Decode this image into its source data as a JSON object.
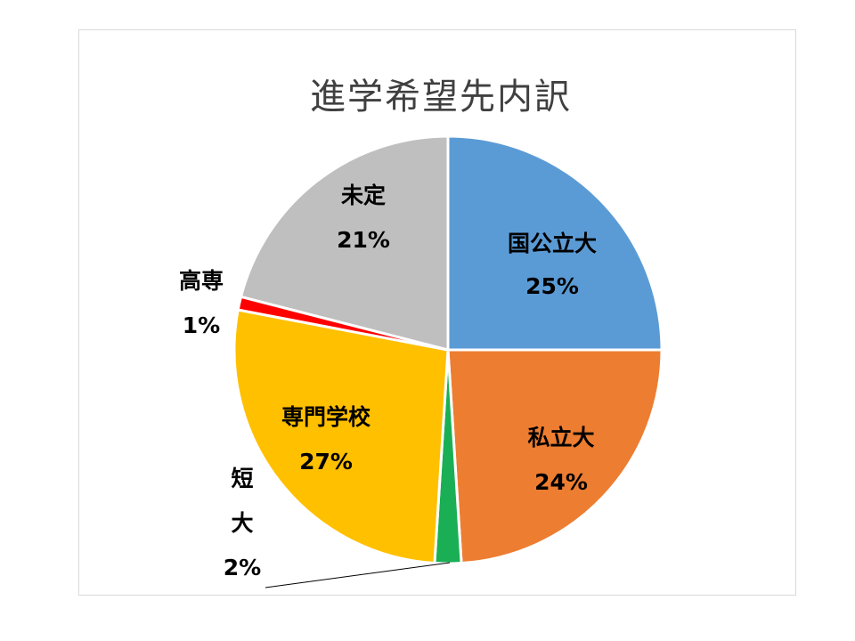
{
  "chart_data": {
    "type": "pie",
    "title": "進学希望先内訳",
    "slices": [
      {
        "label": "国公立大",
        "value": 25,
        "value_label": "25%",
        "color": "#5B9BD5"
      },
      {
        "label": "私立大",
        "value": 24,
        "value_label": "24%",
        "color": "#ED7D31"
      },
      {
        "label": "短大",
        "value": 2,
        "value_label": "2%",
        "color": "#1AAF54"
      },
      {
        "label": "専門学校",
        "value": 27,
        "value_label": "27%",
        "color": "#FFC000"
      },
      {
        "label": "高専",
        "value": 1,
        "value_label": "1%",
        "color": "#FF0000"
      },
      {
        "label": "未定",
        "value": 21,
        "value_label": "21%",
        "color": "#BFBFBF"
      }
    ],
    "legend": "none",
    "data_labels": "category name and percentage"
  }
}
